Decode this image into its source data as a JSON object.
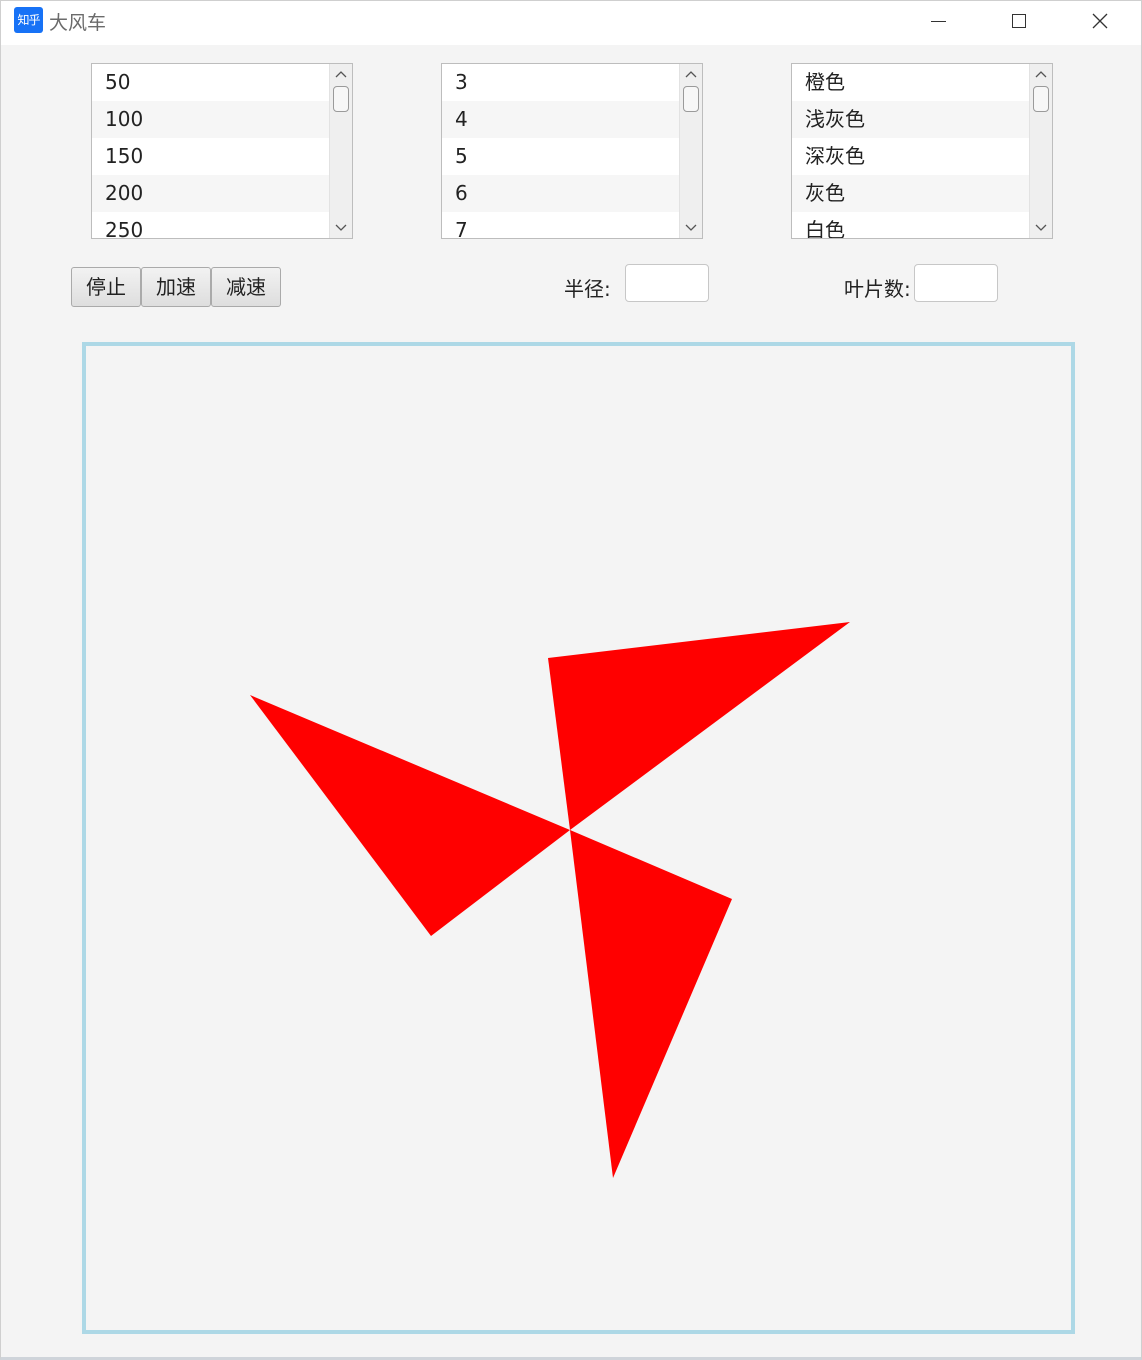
{
  "window": {
    "title": "大风车",
    "app_icon_text": "知乎",
    "minimize_icon": "minimize-icon",
    "maximize_icon": "maximize-icon",
    "close_icon": "close-icon"
  },
  "lists": {
    "radius_list": [
      "50",
      "100",
      "150",
      "200",
      "250"
    ],
    "blade_count_list": [
      "3",
      "4",
      "5",
      "6",
      "7"
    ],
    "color_list": [
      "橙色",
      "浅灰色",
      "深灰色",
      "灰色",
      "白色"
    ]
  },
  "buttons": {
    "stop": "停止",
    "speed_up": "加速",
    "slow_down": "减速"
  },
  "form": {
    "radius_label": "半径:",
    "radius_value": "",
    "blades_label": "叶片数:",
    "blades_value": ""
  },
  "pinwheel": {
    "blade_count": 3,
    "blade_color": "#ff0000",
    "frame_color": "#add8e6"
  }
}
